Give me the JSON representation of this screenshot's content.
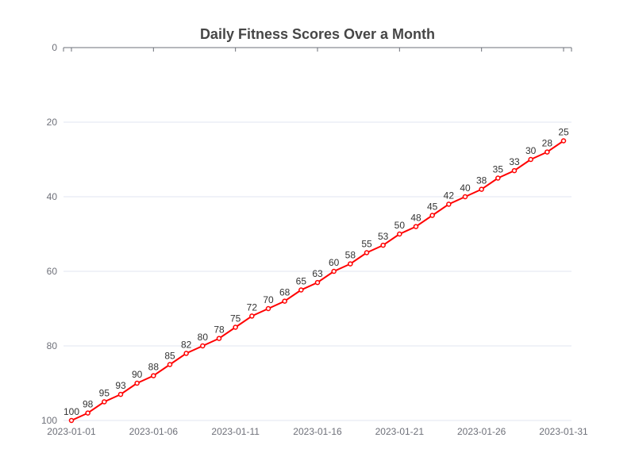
{
  "chart_data": {
    "type": "line",
    "title": "Daily Fitness Scores Over a Month",
    "x": [
      "2023-01-01",
      "2023-01-02",
      "2023-01-03",
      "2023-01-04",
      "2023-01-05",
      "2023-01-06",
      "2023-01-07",
      "2023-01-08",
      "2023-01-09",
      "2023-01-10",
      "2023-01-11",
      "2023-01-12",
      "2023-01-13",
      "2023-01-14",
      "2023-01-15",
      "2023-01-16",
      "2023-01-17",
      "2023-01-18",
      "2023-01-19",
      "2023-01-20",
      "2023-01-21",
      "2023-01-22",
      "2023-01-23",
      "2023-01-24",
      "2023-01-25",
      "2023-01-26",
      "2023-01-27",
      "2023-01-28",
      "2023-01-29",
      "2023-01-30",
      "2023-01-31"
    ],
    "x_tick_labels": [
      "2023-01-01",
      "2023-01-06",
      "2023-01-11",
      "2023-01-16",
      "2023-01-21",
      "2023-01-26",
      "2023-01-31"
    ],
    "series": [
      {
        "values": [
          100,
          98,
          95,
          93,
          90,
          88,
          85,
          82,
          80,
          78,
          75,
          72,
          70,
          68,
          65,
          63,
          60,
          58,
          55,
          53,
          50,
          48,
          45,
          42,
          40,
          38,
          35,
          33,
          30,
          28,
          25
        ],
        "color": "#ff0000"
      }
    ],
    "ylim": [
      0,
      100
    ],
    "y_inverted": true,
    "y_ticks": [
      0,
      20,
      40,
      60,
      80,
      100
    ],
    "xlabel": "",
    "ylabel": "",
    "grid": true
  }
}
